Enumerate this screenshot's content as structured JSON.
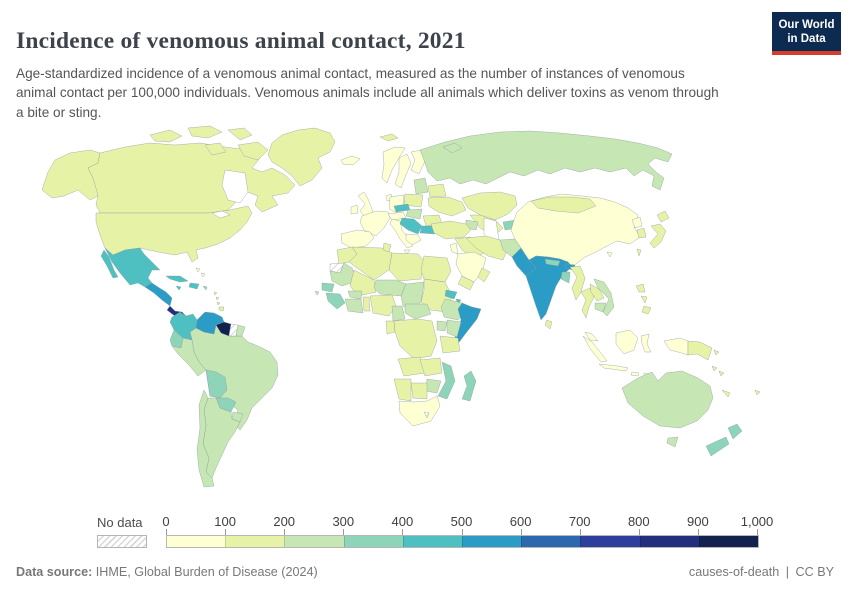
{
  "header": {
    "title": "Incidence of venomous animal contact, 2021",
    "subtitle": "Age-standardized incidence of a venomous animal contact, measured as the number of instances of venomous animal contact per 100,000 individuals. Venomous animals include all animals which deliver toxins as venom through a bite or sting.",
    "logo": {
      "line1": "Our World",
      "line2": "in Data"
    }
  },
  "legend": {
    "no_data_label": "No data",
    "ticks": [
      "0",
      "100",
      "200",
      "300",
      "400",
      "500",
      "600",
      "700",
      "800",
      "900",
      "1,000"
    ],
    "bin_colors": [
      "#feffd3",
      "#e6f3a7",
      "#c6e6b4",
      "#8ed4b9",
      "#4fc0c2",
      "#2a9cc5",
      "#2c68ae",
      "#2e3e9c",
      "#232e7e",
      "#14204e"
    ]
  },
  "footer": {
    "source_label": "Data source:",
    "source_text": "IHME, Global Burden of Disease (2024)",
    "slug": "causes-of-death",
    "divider": "|",
    "license": "CC BY"
  },
  "chart_data": {
    "type": "heatmap",
    "subtype": "choropleth-world-map",
    "title": "Incidence of venomous animal contact, 2021",
    "unit": "instances per 100,000 individuals",
    "year": "2021",
    "legend_bins": [
      {
        "range": "0–100",
        "color": "#feffd3"
      },
      {
        "range": "100–200",
        "color": "#e6f3a7"
      },
      {
        "range": "200–300",
        "color": "#c6e6b4"
      },
      {
        "range": "300–400",
        "color": "#8ed4b9"
      },
      {
        "range": "400–500",
        "color": "#4fc0c2"
      },
      {
        "range": "500–600",
        "color": "#2a9cc5"
      },
      {
        "range": "600–700",
        "color": "#2c68ae"
      },
      {
        "range": "700–800",
        "color": "#2e3e9c"
      },
      {
        "range": "800–900",
        "color": "#232e7e"
      },
      {
        "range": "900–1,000",
        "color": "#14204e"
      }
    ],
    "regions_estimated": {
      "United States": "100–200",
      "Canada": "100–200",
      "Greenland": "100–200",
      "Mexico": "400–500",
      "Cuba": "400–500",
      "Guatemala, Honduras, Nicaragua": "500–600",
      "Costa Rica & Panama": "800–900",
      "Colombia": "400–500",
      "Venezuela": "500–600",
      "Guyana": "900–1,000",
      "Suriname": "No data",
      "Ecuador": "300–400",
      "Peru": "200–300",
      "Brazil": "200–300",
      "Bolivia": "300–400",
      "Paraguay": "300–400",
      "Chile": "200–300",
      "Argentina": "200–300",
      "Uruguay": "200–300",
      "Western Europe": "0–100",
      "Poland": "100–200",
      "Ukraine": "100–200",
      "Czechia": "400–500",
      "Balkans (Serbia, Bosnia, Bulgaria)": "400–500",
      "Russia": "200–300",
      "Turkey": "100–200",
      "North Africa (Morocco–Egypt)": "100–200",
      "Sahel (Mauritania, Niger, Chad)": "200–300",
      "Senegal & Guinea": "300–400",
      "Nigeria": "100–200",
      "DR Congo": "100–200",
      "Ethiopia": "200–300",
      "Eritrea & Djibouti": "400–500",
      "Somalia": "500–600",
      "Kenya": "200–300",
      "Mozambique & Malawi": "300–400",
      "Madagascar": "300–400",
      "South Africa": "0–100",
      "Lesotho": "No data",
      "Western Sahara": "No data",
      "Saudi Arabia": "0–100",
      "Iran": "100–200",
      "Afghanistan": "200–300",
      "Pakistan": "500–600",
      "India": "500–600",
      "Nepal": "300–400",
      "Bhutan": "500–600",
      "Bangladesh": "300–400",
      "China": "0–100",
      "Mongolia": "100–200",
      "Japan": "100–200",
      "Southeast Asia": "100–200",
      "Indonesia": "0–100",
      "Papua New Guinea": "100–200",
      "Australia": "200–300",
      "New Zealand": "300–400"
    }
  },
  "map": {
    "default_fill": "#ededed",
    "region_bins": {
      "alaska": 2,
      "canada": 2,
      "arctic-islands": 2,
      "greenland": 2,
      "usa": 2,
      "mexico": 5,
      "camerica-north": 6,
      "camerica-south": 9,
      "cuba": 5,
      "hispaniola": 5,
      "jamaica": 5,
      "puerto-rico": 4,
      "bahamas": 1,
      "antilles": 2,
      "trinidad": 2,
      "colombia": 5,
      "venezuela": 6,
      "guyana": 10,
      "suriname": "nodata",
      "french-guiana": 3,
      "ecuador": 4,
      "peru": 3,
      "brazil": 3,
      "bolivia": 4,
      "paraguay": 4,
      "uruguay": 3,
      "argentina": 3,
      "chile": 3,
      "iceland": 1,
      "uk": 1,
      "ireland": 1,
      "norway": 1,
      "sweden": 1,
      "finland": 1,
      "denmark": 1,
      "baltics": 3,
      "belarus": 2,
      "poland": 2,
      "germany": 1,
      "france": 1,
      "iberia": 1,
      "italy": 1,
      "alps": 1,
      "czechia": 5,
      "slovakia-hungary": 3,
      "ukraine": 2,
      "romania": 2,
      "balkans": 5,
      "bulgaria": 5,
      "greece": 1,
      "russia": 3,
      "novaya-zemlya": 3,
      "svalbard": 2,
      "kazakhstan": 2,
      "central-asia": 2,
      "kyrgyz-tajik": 4,
      "caucasus": 3,
      "turkey": 2,
      "syria-iraq": 2,
      "israel-jordan": 1,
      "saudi-arabia": 1,
      "yemen": 2,
      "oman": 2,
      "iran": 2,
      "afghanistan": 3,
      "pakistan": 6,
      "india": 6,
      "nepal": 4,
      "bhutan": 6,
      "bangladesh": 4,
      "sri-lanka": 2,
      "myanmar": 2,
      "thailand": 2,
      "laos": 2,
      "cambodia": 3,
      "vietnam": 3,
      "malaysia": 1,
      "sumatra": 1,
      "java": 1,
      "borneo": 1,
      "sulawesi": 1,
      "lesser-sunda": 1,
      "papua-indonesia": 1,
      "png": 2,
      "china": 1,
      "hainan": 1,
      "mongolia": 2,
      "north-korea": 1,
      "south-korea": 2,
      "japan": 2,
      "taiwan": 2,
      "philippines": 2,
      "morocco": 2,
      "western-sahara": "nodata",
      "algeria": 2,
      "tunisia": 2,
      "libya": 2,
      "egypt": 2,
      "mauritania": 3,
      "mali": 2,
      "niger": 3,
      "chad": 3,
      "sudan": 2,
      "eritrea": 5,
      "djibouti": 5,
      "ethiopia": 3,
      "somalia": 6,
      "senegal": 4,
      "guinea": 4,
      "ivory-ghana": 3,
      "burkina": 3,
      "togo-benin": 2,
      "nigeria": 2,
      "cameroon": 3,
      "car": 3,
      "gabon-congo": 2,
      "drc": 2,
      "uganda": 3,
      "kenya": 3,
      "tanzania": 2,
      "angola": 2,
      "zambia": 2,
      "malawi-mozambique": 4,
      "zimbabwe": 3,
      "botswana": 2,
      "namibia": 2,
      "south-africa": 1,
      "lesotho": "nodata",
      "madagascar": 4,
      "cape-verde": 3,
      "australia": 3,
      "tasmania": 3,
      "new-zealand": 4,
      "new-caledonia": 2,
      "fiji": 2,
      "solomon": 2
    }
  }
}
